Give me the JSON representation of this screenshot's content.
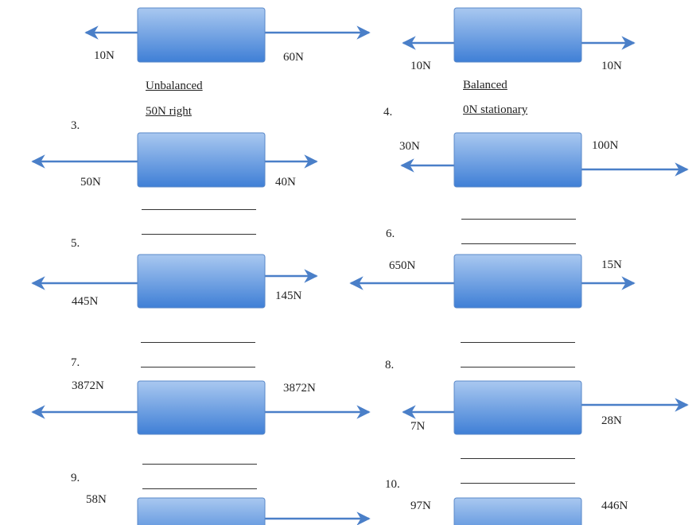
{
  "problems": [
    {
      "number": "",
      "left_force": "10N",
      "right_force": "60N",
      "answer_1": "Unbalanced",
      "answer_2": "50N right"
    },
    {
      "number": "",
      "left_force": "10N",
      "right_force": "10N",
      "answer_1": "Balanced",
      "answer_2": "0N stationary"
    },
    {
      "number": "3.",
      "left_force": "50N",
      "right_force": "40N"
    },
    {
      "number": "4.",
      "left_force": "30N",
      "right_force": "100N"
    },
    {
      "number": "5.",
      "left_force": "445N",
      "right_force": "145N"
    },
    {
      "number": "6.",
      "left_force": "650N",
      "right_force": "15N"
    },
    {
      "number": "7.",
      "left_force": "3872N",
      "right_force": "3872N"
    },
    {
      "number": "8.",
      "left_force": "7N",
      "right_force": "28N"
    },
    {
      "number": "9.",
      "left_force": "58N",
      "right_force": ""
    },
    {
      "number": "10.",
      "left_force": "97N",
      "right_force": "446N"
    }
  ],
  "colors": {
    "box_top": "#a9c8f0",
    "box_bottom": "#3f7fd6",
    "arrow": "#4a7fc8"
  }
}
